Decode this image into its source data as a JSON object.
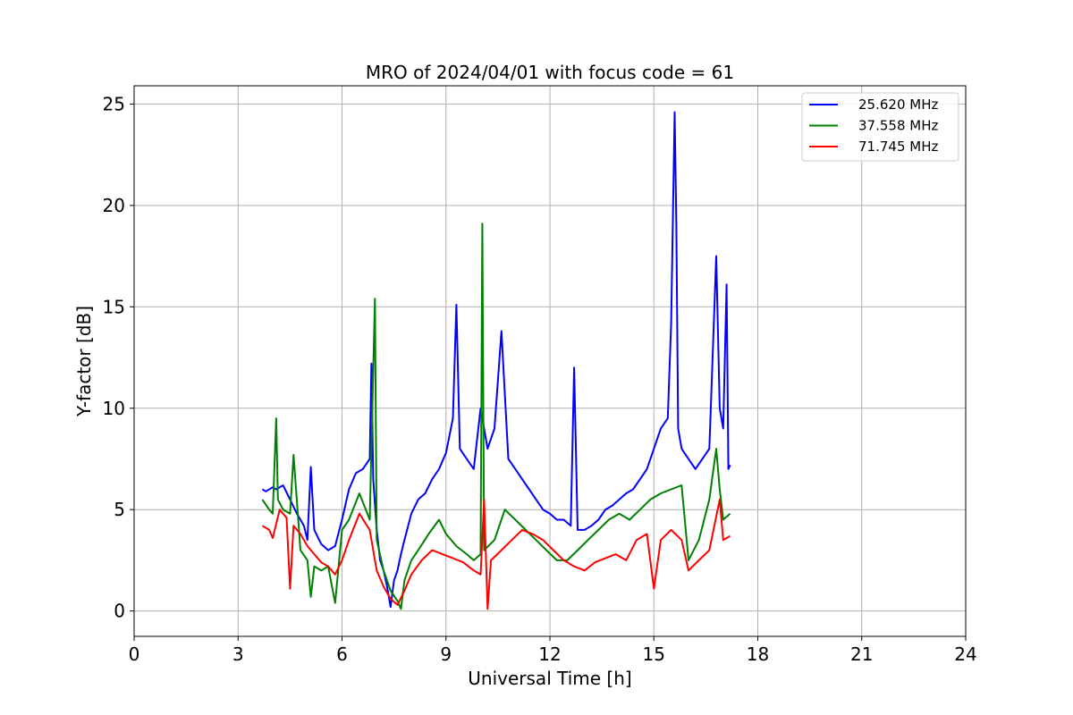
{
  "chart_data": {
    "type": "line",
    "title": "MRO of 2024/04/01 with focus code = 61",
    "xlabel": "Universal Time [h]",
    "ylabel": "Y-factor [dB]",
    "xlim": [
      0,
      24
    ],
    "ylim": [
      -1.25,
      25.9
    ],
    "xticks": [
      0,
      3,
      6,
      9,
      12,
      15,
      18,
      21,
      24
    ],
    "yticks": [
      0,
      5,
      10,
      15,
      20,
      25
    ],
    "grid": true,
    "legend_position": "top-right",
    "series": [
      {
        "name": "25.620 MHz",
        "color": "#0000ff",
        "x": [
          3.7,
          3.8,
          4.0,
          4.1,
          4.3,
          4.5,
          4.7,
          4.9,
          5.0,
          5.1,
          5.2,
          5.4,
          5.6,
          5.8,
          6.0,
          6.2,
          6.4,
          6.6,
          6.8,
          6.85,
          6.9,
          7.0,
          7.1,
          7.2,
          7.3,
          7.4,
          7.5,
          7.6,
          7.7,
          7.8,
          8.0,
          8.2,
          8.4,
          8.6,
          8.8,
          9.0,
          9.2,
          9.3,
          9.4,
          9.6,
          9.8,
          10.0,
          10.2,
          10.4,
          10.6,
          10.8,
          11.0,
          11.2,
          11.4,
          11.6,
          11.8,
          12.0,
          12.2,
          12.4,
          12.6,
          12.7,
          12.8,
          13.0,
          13.2,
          13.4,
          13.6,
          13.8,
          14.0,
          14.2,
          14.4,
          14.6,
          14.8,
          15.0,
          15.2,
          15.4,
          15.5,
          15.6,
          15.65,
          15.7,
          15.8,
          16.0,
          16.2,
          16.4,
          16.6,
          16.8,
          16.9,
          17.0,
          17.1,
          17.15,
          17.2
        ],
        "y": [
          6.0,
          5.9,
          6.1,
          6.0,
          6.2,
          5.5,
          4.8,
          4.2,
          3.5,
          7.1,
          4.0,
          3.3,
          3.0,
          3.2,
          4.5,
          6.0,
          6.8,
          7.0,
          7.5,
          12.2,
          6.5,
          4.0,
          2.5,
          2.0,
          1.2,
          0.2,
          1.5,
          2.0,
          2.8,
          3.5,
          4.8,
          5.5,
          5.8,
          6.5,
          7.0,
          7.8,
          9.5,
          15.1,
          8.0,
          7.5,
          7.0,
          10.0,
          8.0,
          9.0,
          13.8,
          7.5,
          7.0,
          6.5,
          6.0,
          5.5,
          5.0,
          4.8,
          4.5,
          4.5,
          4.2,
          12.0,
          4.0,
          4.0,
          4.2,
          4.5,
          5.0,
          5.2,
          5.5,
          5.8,
          6.0,
          6.5,
          7.0,
          8.0,
          9.0,
          9.5,
          14.2,
          24.6,
          19.0,
          9.0,
          8.0,
          7.5,
          7.0,
          7.5,
          8.0,
          17.5,
          10.0,
          9.0,
          16.1,
          7.0,
          7.2
        ]
      },
      {
        "name": "37.558 MHz",
        "color": "#008000",
        "x": [
          3.7,
          3.9,
          4.0,
          4.1,
          4.15,
          4.3,
          4.5,
          4.6,
          4.8,
          5.0,
          5.1,
          5.2,
          5.4,
          5.6,
          5.8,
          6.0,
          6.2,
          6.5,
          6.8,
          6.95,
          7.0,
          7.2,
          7.4,
          7.6,
          7.7,
          7.8,
          8.0,
          8.2,
          8.5,
          8.8,
          9.0,
          9.3,
          9.6,
          9.8,
          10.0,
          10.05,
          10.1,
          10.4,
          10.7,
          11.0,
          11.3,
          11.6,
          11.9,
          12.2,
          12.5,
          12.8,
          13.1,
          13.4,
          13.7,
          14.0,
          14.3,
          14.6,
          14.9,
          15.2,
          15.5,
          15.8,
          16.0,
          16.3,
          16.6,
          16.8,
          16.9,
          17.0,
          17.2
        ],
        "y": [
          5.5,
          5.0,
          4.8,
          9.5,
          5.5,
          5.0,
          4.8,
          7.7,
          3.0,
          2.5,
          0.7,
          2.2,
          2.0,
          2.2,
          0.4,
          4.0,
          4.5,
          5.8,
          4.5,
          15.4,
          3.5,
          2.0,
          1.0,
          0.5,
          0.1,
          1.5,
          2.5,
          3.0,
          3.8,
          4.5,
          3.8,
          3.2,
          2.8,
          2.5,
          2.8,
          19.1,
          3.0,
          3.5,
          5.0,
          4.5,
          4.0,
          3.5,
          3.0,
          2.5,
          2.5,
          3.0,
          3.5,
          4.0,
          4.5,
          4.8,
          4.5,
          5.0,
          5.5,
          5.8,
          6.0,
          6.2,
          2.5,
          3.5,
          5.5,
          8.0,
          6.0,
          4.5,
          4.8
        ]
      },
      {
        "name": "71.745 MHz",
        "color": "#ff0000",
        "x": [
          3.7,
          3.9,
          4.0,
          4.2,
          4.4,
          4.5,
          4.6,
          4.8,
          5.0,
          5.2,
          5.4,
          5.6,
          5.8,
          6.0,
          6.2,
          6.5,
          6.8,
          7.0,
          7.2,
          7.4,
          7.6,
          7.8,
          8.0,
          8.3,
          8.6,
          8.9,
          9.2,
          9.5,
          9.8,
          10.0,
          10.1,
          10.2,
          10.3,
          10.6,
          10.9,
          11.2,
          11.5,
          11.8,
          12.1,
          12.4,
          12.7,
          13.0,
          13.3,
          13.6,
          13.9,
          14.2,
          14.5,
          14.8,
          15.0,
          15.2,
          15.5,
          15.8,
          16.0,
          16.3,
          16.6,
          16.9,
          17.0,
          17.2
        ],
        "y": [
          4.2,
          4.0,
          3.6,
          5.0,
          4.6,
          1.1,
          4.2,
          3.8,
          3.2,
          2.8,
          2.4,
          2.2,
          1.8,
          2.5,
          3.5,
          4.8,
          4.0,
          2.0,
          1.2,
          0.6,
          0.3,
          1.0,
          1.8,
          2.5,
          3.0,
          2.8,
          2.6,
          2.4,
          2.0,
          1.8,
          5.5,
          0.1,
          2.5,
          3.0,
          3.5,
          4.0,
          3.8,
          3.5,
          3.0,
          2.5,
          2.2,
          2.0,
          2.4,
          2.6,
          2.8,
          2.5,
          3.5,
          3.8,
          1.1,
          3.5,
          4.0,
          3.5,
          2.0,
          2.5,
          3.0,
          5.5,
          3.5,
          3.7
        ]
      }
    ]
  }
}
